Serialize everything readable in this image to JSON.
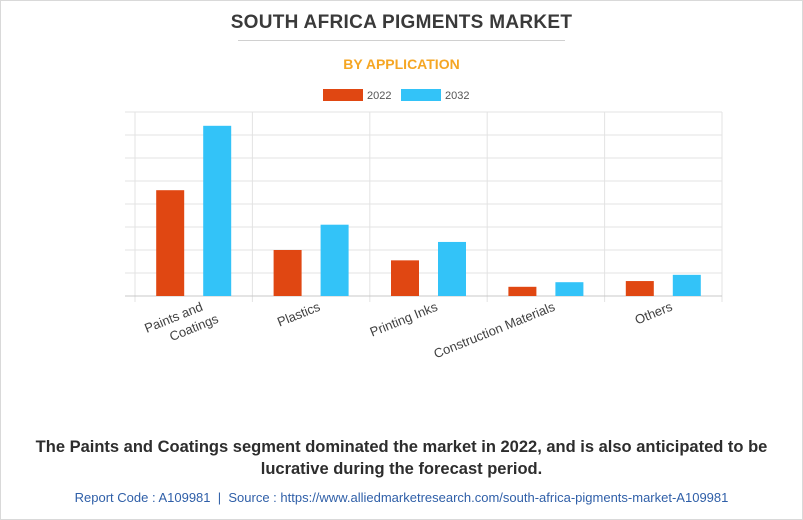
{
  "chart_data": {
    "type": "bar",
    "title": "SOUTH AFRICA PIGMENTS MARKET",
    "subtitle": "BY APPLICATION",
    "categories": [
      "Paints and Coatings",
      "Plastics",
      "Printing Inks",
      "Construction Materials",
      "Others"
    ],
    "category_lines": [
      [
        "Paints and",
        "Coatings"
      ],
      [
        "Plastics"
      ],
      [
        "Printing Inks"
      ],
      [
        "Construction Materials"
      ],
      [
        "Others"
      ]
    ],
    "series": [
      {
        "name": "2022",
        "color": "#e04712",
        "values": [
          4.6,
          2.0,
          1.55,
          0.4,
          0.65
        ]
      },
      {
        "name": "2032",
        "color": "#33c3f8",
        "values": [
          7.4,
          3.1,
          2.35,
          0.6,
          0.92
        ]
      }
    ],
    "ylim": [
      0,
      8
    ],
    "y_gridlines": 8,
    "legend_position": "top-center",
    "xlabel": "",
    "ylabel": ""
  },
  "caption": "The Paints and Coatings segment dominated the market in 2022, and is also anticipated to be lucrative during the forecast period.",
  "footer": {
    "report_code": "Report Code : A109981",
    "separator": "|",
    "source": "Source : https://www.alliedmarketresearch.com/south-africa-pigments-market-A109981"
  }
}
